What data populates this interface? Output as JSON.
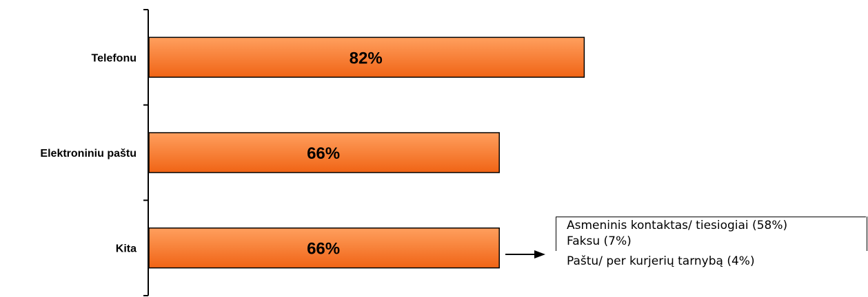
{
  "chart_data": {
    "type": "bar",
    "orientation": "horizontal",
    "categories": [
      "Telefonu",
      "Elektroniniu paštu",
      "Kita"
    ],
    "values": [
      82,
      66,
      66
    ],
    "data_labels": [
      "82%",
      "66%",
      "66%"
    ],
    "xlim": [
      0,
      100
    ],
    "bar_color": "#f47a2e",
    "bar_gradient_top": "#ff9a55",
    "bar_gradient_bottom": "#f0691a"
  },
  "callout": {
    "lines": [
      "Asmeninis kontaktas/ tiesiogiai (58%)",
      "Faksu (7%)",
      "Paštu/ per kurjerių tarnybą (4%)"
    ]
  }
}
